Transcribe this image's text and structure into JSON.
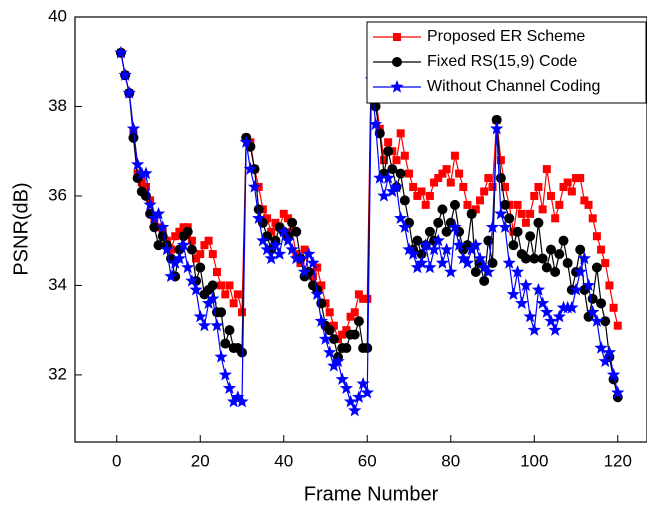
{
  "chart_data": {
    "type": "line",
    "title": null,
    "x_label": "Frame Number",
    "y_label": "PSNR(dB)",
    "xlim": [
      -10,
      127
    ],
    "ylim": [
      30.5,
      40
    ],
    "xticks": [
      0,
      20,
      40,
      60,
      80,
      100,
      120
    ],
    "yticks": [
      32,
      34,
      36,
      38,
      40
    ],
    "legend": "top-right",
    "grid": false,
    "x": [
      1,
      2,
      3,
      4,
      5,
      6,
      7,
      8,
      9,
      10,
      11,
      12,
      13,
      14,
      15,
      16,
      17,
      18,
      19,
      20,
      21,
      22,
      23,
      24,
      25,
      26,
      27,
      28,
      29,
      30,
      31,
      32,
      33,
      34,
      35,
      36,
      37,
      38,
      39,
      40,
      41,
      42,
      43,
      44,
      45,
      46,
      47,
      48,
      49,
      50,
      51,
      52,
      53,
      54,
      55,
      56,
      57,
      58,
      59,
      60,
      61,
      62,
      63,
      64,
      65,
      66,
      67,
      68,
      69,
      70,
      71,
      72,
      73,
      74,
      75,
      76,
      77,
      78,
      79,
      80,
      81,
      82,
      83,
      84,
      85,
      86,
      87,
      88,
      89,
      90,
      91,
      92,
      93,
      94,
      95,
      96,
      97,
      98,
      99,
      100,
      101,
      102,
      103,
      104,
      105,
      106,
      107,
      108,
      109,
      110,
      111,
      112,
      113,
      114,
      115,
      116,
      117,
      118,
      119,
      120
    ],
    "series": [
      {
        "name": "Proposed ER Scheme",
        "color": "#ff0000",
        "marker": "square",
        "values": [
          39.2,
          38.7,
          38.3,
          37.4,
          36.5,
          36.3,
          36.2,
          35.9,
          35.5,
          35.3,
          35.2,
          35.0,
          34.8,
          35.1,
          35.2,
          35.3,
          35.3,
          35.0,
          34.6,
          34.7,
          34.9,
          35.0,
          34.7,
          34.3,
          34.0,
          33.8,
          34.0,
          33.6,
          33.8,
          33.4,
          37.3,
          37.2,
          36.6,
          36.2,
          35.7,
          35.5,
          35.2,
          35.4,
          35.3,
          35.6,
          35.5,
          35.2,
          34.7,
          34.5,
          34.8,
          34.3,
          34.2,
          34.4,
          34.0,
          33.6,
          33.4,
          33.1,
          32.8,
          32.9,
          33.0,
          33.3,
          33.4,
          33.8,
          33.7,
          33.7,
          39.2,
          38.2,
          37.5,
          36.8,
          37.2,
          37.0,
          36.8,
          37.4,
          36.9,
          36.5,
          36.2,
          36.0,
          36.1,
          35.8,
          36.0,
          36.3,
          36.4,
          36.5,
          36.6,
          36.3,
          36.9,
          36.5,
          36.2,
          35.8,
          35.6,
          35.7,
          35.9,
          36.1,
          36.4,
          36.2,
          37.7,
          36.8,
          36.2,
          35.8,
          35.2,
          35.8,
          35.6,
          35.4,
          35.6,
          36.0,
          36.2,
          35.7,
          36.6,
          36.0,
          35.5,
          35.8,
          36.2,
          36.3,
          36.1,
          36.4,
          36.4,
          35.9,
          35.8,
          35.5,
          35.1,
          34.8,
          34.5,
          34.0,
          33.5,
          33.1
        ]
      },
      {
        "name": "Fixed RS(15,9) Code",
        "color": "#000000",
        "marker": "circle",
        "values": [
          39.2,
          38.7,
          38.3,
          37.3,
          36.4,
          36.1,
          36.0,
          35.6,
          35.3,
          34.9,
          35.1,
          34.9,
          34.6,
          34.2,
          34.8,
          35.1,
          35.2,
          34.8,
          34.1,
          34.4,
          33.8,
          33.9,
          34.0,
          33.4,
          33.4,
          32.7,
          33.0,
          32.6,
          32.6,
          32.5,
          37.3,
          37.1,
          36.6,
          35.7,
          35.4,
          35.1,
          34.8,
          35.0,
          35.3,
          35.2,
          35.1,
          35.4,
          35.2,
          34.6,
          34.2,
          34.3,
          34.0,
          33.9,
          33.6,
          33.1,
          33.0,
          32.8,
          32.4,
          32.6,
          32.6,
          32.9,
          32.9,
          33.2,
          32.6,
          32.6,
          39.2,
          38.0,
          37.4,
          36.5,
          37.0,
          36.6,
          36.2,
          36.5,
          35.9,
          35.4,
          34.8,
          35.0,
          34.7,
          34.9,
          35.2,
          35.0,
          35.4,
          35.7,
          35.2,
          35.4,
          35.8,
          35.2,
          34.8,
          34.9,
          35.6,
          34.3,
          34.5,
          34.1,
          35.0,
          34.5,
          37.7,
          36.4,
          35.8,
          35.5,
          34.9,
          35.2,
          34.7,
          34.6,
          35.1,
          34.6,
          35.4,
          34.6,
          34.4,
          34.8,
          34.3,
          34.7,
          35.0,
          34.5,
          33.9,
          34.3,
          34.8,
          33.9,
          33.3,
          33.7,
          34.4,
          33.6,
          33.2,
          32.4,
          31.9,
          31.5
        ]
      },
      {
        "name": "Without Channel Coding",
        "color": "#0000ff",
        "marker": "star",
        "values": [
          39.2,
          38.7,
          38.3,
          37.5,
          36.7,
          36.5,
          36.5,
          35.8,
          35.5,
          35.6,
          35.3,
          34.8,
          34.2,
          34.5,
          34.6,
          34.9,
          34.4,
          34.1,
          33.9,
          33.3,
          33.1,
          33.6,
          33.7,
          33.1,
          32.4,
          32.0,
          31.7,
          31.4,
          31.5,
          31.4,
          37.2,
          36.6,
          36.2,
          35.5,
          35.0,
          34.8,
          34.6,
          34.9,
          34.7,
          35.2,
          35.0,
          34.8,
          34.6,
          34.6,
          34.3,
          34.7,
          34.5,
          33.8,
          33.2,
          32.8,
          32.5,
          32.2,
          32.3,
          31.9,
          31.7,
          31.4,
          31.2,
          31.5,
          31.8,
          31.6,
          38.6,
          37.6,
          36.4,
          36.0,
          36.4,
          36.1,
          36.2,
          35.5,
          35.3,
          34.8,
          34.7,
          34.4,
          34.5,
          34.9,
          34.4,
          34.8,
          35.0,
          34.5,
          34.8,
          34.3,
          35.3,
          34.9,
          34.6,
          34.5,
          34.8,
          34.9,
          34.6,
          34.4,
          34.3,
          35.3,
          37.5,
          35.6,
          35.3,
          34.5,
          33.8,
          34.3,
          33.6,
          34.0,
          33.3,
          33.0,
          33.9,
          33.6,
          33.4,
          33.2,
          33.0,
          33.3,
          33.5,
          33.5,
          33.5,
          33.9,
          34.3,
          34.6,
          34.0,
          33.4,
          33.2,
          32.6,
          32.3,
          32.5,
          32.0,
          31.6
        ]
      }
    ]
  }
}
